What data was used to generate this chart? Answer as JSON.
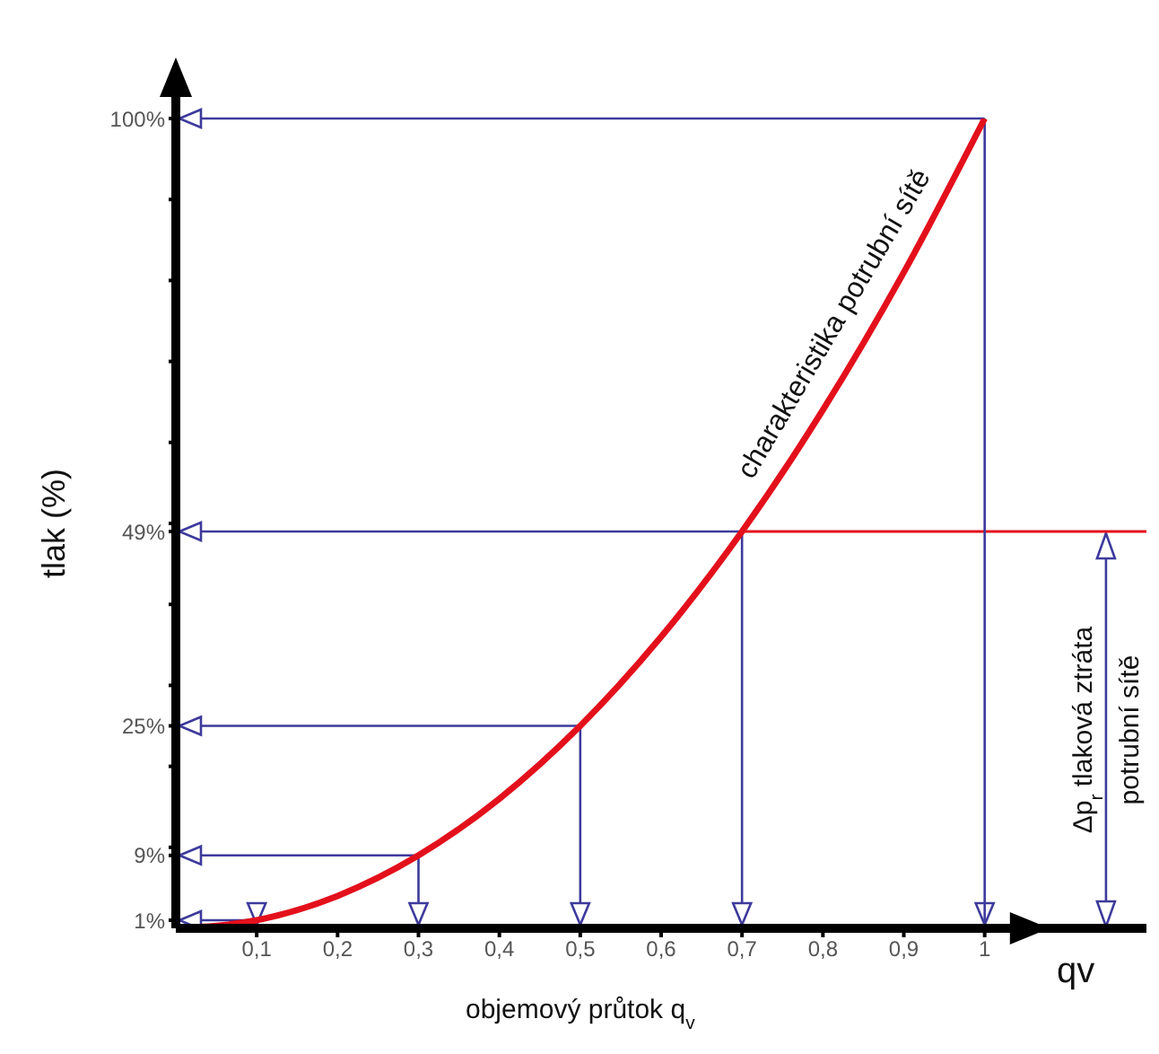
{
  "chart_data": {
    "type": "line",
    "xlabel": "objemový průtok q$_{v}$",
    "ylabel": "tlak (%)",
    "x": [
      0,
      0.1,
      0.2,
      0.3,
      0.4,
      0.5,
      0.6,
      0.7,
      0.8,
      0.9,
      1
    ],
    "series": [
      {
        "name": "charakteristika potrubní sítě",
        "color": "#e3101c",
        "values": [
          0,
          1,
          4,
          9,
          16,
          25,
          36,
          49,
          64,
          81,
          100
        ]
      }
    ],
    "xlim": [
      0,
      1.2
    ],
    "ylim": [
      0,
      100
    ],
    "xticks": [
      {
        "value": 0.1,
        "label": "0,1"
      },
      {
        "value": 0.2,
        "label": "0,2"
      },
      {
        "value": 0.3,
        "label": "0,3"
      },
      {
        "value": 0.4,
        "label": "0,4"
      },
      {
        "value": 0.5,
        "label": "0,5"
      },
      {
        "value": 0.6,
        "label": "0,6"
      },
      {
        "value": 0.7,
        "label": "0,7"
      },
      {
        "value": 0.8,
        "label": "0,8"
      },
      {
        "value": 0.9,
        "label": "0,9"
      },
      1
    ],
    "yticks": [
      {
        "value": 1,
        "label": "1%"
      },
      {
        "value": 9,
        "label": "9%"
      },
      {
        "value": 10,
        "label": null
      },
      {
        "value": 20,
        "label": null
      },
      {
        "value": 25,
        "label": "25%"
      },
      {
        "value": 30,
        "label": null
      },
      {
        "value": 40,
        "label": null
      },
      {
        "value": 49,
        "label": "49%"
      },
      {
        "value": 50,
        "label": null
      },
      {
        "value": 60,
        "label": null
      },
      {
        "value": 70,
        "label": null
      },
      {
        "value": 80,
        "label": null
      },
      {
        "value": 90,
        "label": null
      },
      {
        "value": 100,
        "label": "100%"
      }
    ],
    "ref_lines": [
      {
        "axis": "y",
        "value": 49,
        "label": null,
        "color": "#e3101c"
      },
      {
        "axis": "x",
        "value": 1,
        "label": null,
        "color": "#3d3a9c"
      }
    ],
    "annotations": [
      "Δp$_{r}$ tlaková ztráta\npotrubní sítě",
      "qv"
    ],
    "grid": false,
    "legend": false,
    "marker": "none",
    "line_style": "solid"
  }
}
